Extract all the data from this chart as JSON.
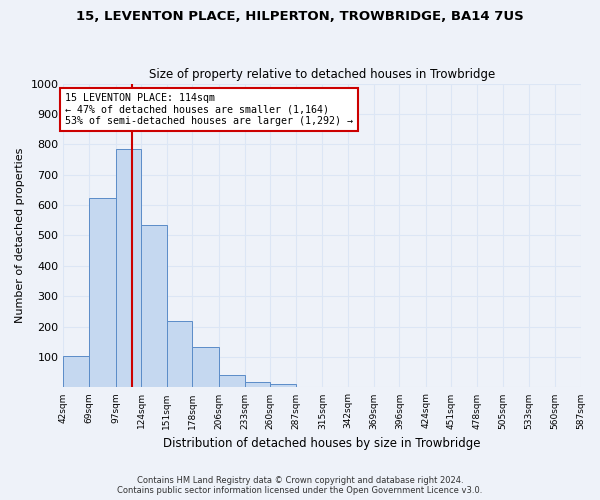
{
  "title1": "15, LEVENTON PLACE, HILPERTON, TROWBRIDGE, BA14 7US",
  "title2": "Size of property relative to detached houses in Trowbridge",
  "xlabel": "Distribution of detached houses by size in Trowbridge",
  "ylabel": "Number of detached properties",
  "bar_color": "#c5d8f0",
  "bar_edge_color": "#5b8cc8",
  "bin_edges": [
    42,
    69,
    97,
    124,
    151,
    178,
    206,
    233,
    260,
    287,
    315,
    342,
    369,
    396,
    424,
    451,
    478,
    505,
    533,
    560,
    587
  ],
  "bar_heights": [
    105,
    625,
    785,
    535,
    220,
    133,
    42,
    18,
    12,
    0,
    0,
    0,
    0,
    0,
    0,
    0,
    0,
    0,
    0,
    0
  ],
  "x_labels": [
    "42sqm",
    "69sqm",
    "97sqm",
    "124sqm",
    "151sqm",
    "178sqm",
    "206sqm",
    "233sqm",
    "260sqm",
    "287sqm",
    "315sqm",
    "342sqm",
    "369sqm",
    "396sqm",
    "424sqm",
    "451sqm",
    "478sqm",
    "505sqm",
    "533sqm",
    "560sqm",
    "587sqm"
  ],
  "vline_x": 114,
  "vline_color": "#cc0000",
  "annotation_text": "15 LEVENTON PLACE: 114sqm\n← 47% of detached houses are smaller (1,164)\n53% of semi-detached houses are larger (1,292) →",
  "annotation_box_color": "#ffffff",
  "annotation_box_edge": "#cc0000",
  "ylim": [
    0,
    1000
  ],
  "yticks": [
    0,
    100,
    200,
    300,
    400,
    500,
    600,
    700,
    800,
    900,
    1000
  ],
  "footer1": "Contains HM Land Registry data © Crown copyright and database right 2024.",
  "footer2": "Contains public sector information licensed under the Open Government Licence v3.0.",
  "bg_color": "#eef2f9",
  "grid_color": "#dce6f5"
}
